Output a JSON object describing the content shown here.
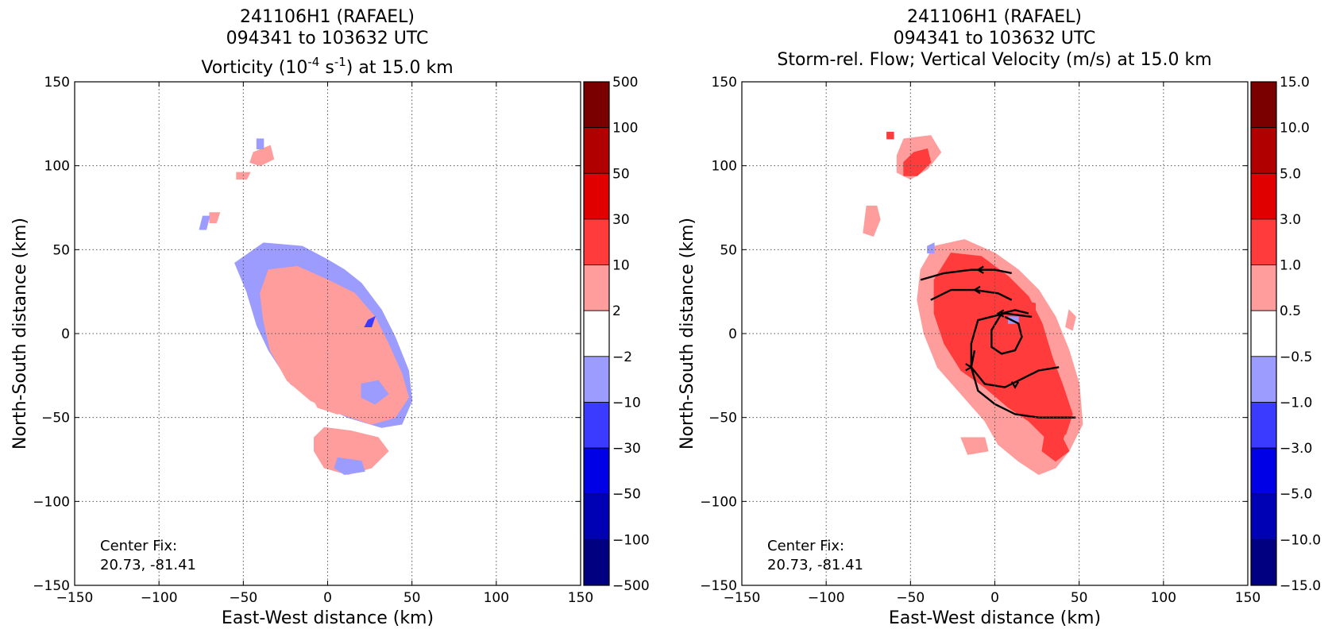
{
  "chart_data": [
    {
      "type": "heatmap",
      "title_lines": [
        "241106H1 (RAFAEL)",
        "094341 to 103632 UTC"
      ],
      "title_line3": {
        "prefix": "Vorticity (10",
        "sup1": "-4",
        "middle": " s",
        "sup2": "-1",
        "suffix": ") at 15.0 km"
      },
      "xlabel": "East-West distance (km)",
      "ylabel": "North-South distance (km)",
      "xlim": [
        -150,
        150
      ],
      "ylim": [
        -150,
        150
      ],
      "xticks": [
        "−150",
        "−100",
        "−50",
        "0",
        "50",
        "100",
        "150"
      ],
      "yticks": [
        "150",
        "100",
        "50",
        "0",
        "−50",
        "−100",
        "−150"
      ],
      "grid": true,
      "annotation": [
        "Center Fix:",
        "20.73, -81.41"
      ],
      "colorbar_labels": [
        "500",
        "100",
        "50",
        "30",
        "10",
        "2",
        "−2",
        "−10",
        "−30",
        "−50",
        "−100",
        "−500"
      ],
      "colorbar_colors": [
        "#7a0000",
        "#b00000",
        "#e00000",
        "#ff3b3b",
        "#ff9c9c",
        "#ffffff",
        "#9c9cff",
        "#3b3bff",
        "#0000e6",
        "#0000b4",
        "#000080"
      ],
      "regions": [
        {
          "level": "neg2",
          "points": [
            [
              -55,
              42
            ],
            [
              -38,
              54
            ],
            [
              -15,
              52
            ],
            [
              0,
              44
            ],
            [
              10,
              38
            ],
            [
              20,
              30
            ],
            [
              32,
              14
            ],
            [
              40,
              -2
            ],
            [
              48,
              -22
            ],
            [
              50,
              -40
            ],
            [
              44,
              -54
            ],
            [
              32,
              -56
            ],
            [
              12,
              -50
            ],
            [
              -5,
              -42
            ],
            [
              -22,
              -30
            ],
            [
              -35,
              -10
            ],
            [
              -42,
              5
            ],
            [
              -48,
              25
            ]
          ]
        },
        {
          "level": "pos2",
          "points": [
            [
              -35,
              38
            ],
            [
              -18,
              40
            ],
            [
              0,
              32
            ],
            [
              16,
              24
            ],
            [
              28,
              10
            ],
            [
              36,
              -6
            ],
            [
              44,
              -24
            ],
            [
              48,
              -38
            ],
            [
              40,
              -50
            ],
            [
              26,
              -54
            ],
            [
              8,
              -48
            ],
            [
              -10,
              -40
            ],
            [
              -24,
              -28
            ],
            [
              -34,
              -10
            ],
            [
              -38,
              8
            ],
            [
              -40,
              24
            ]
          ]
        },
        {
          "level": "pos10",
          "points": [
            [
              -18,
              20
            ],
            [
              -4,
              22
            ],
            [
              10,
              16
            ],
            [
              18,
              6
            ],
            [
              22,
              -8
            ],
            [
              18,
              -20
            ],
            [
              8,
              -24
            ],
            [
              -6,
              -22
            ],
            [
              -18,
              -12
            ],
            [
              -24,
              0
            ],
            [
              -22,
              12
            ]
          ]
        },
        {
          "level": "pos10",
          "points": [
            [
              -6,
              -30
            ],
            [
              6,
              -34
            ],
            [
              14,
              -42
            ],
            [
              6,
              -48
            ],
            [
              -6,
              -44
            ],
            [
              -10,
              -36
            ]
          ]
        },
        {
          "level": "neg2",
          "points": [
            [
              20,
              -30
            ],
            [
              30,
              -28
            ],
            [
              36,
              -36
            ],
            [
              28,
              -42
            ],
            [
              20,
              -38
            ]
          ]
        },
        {
          "level": "neg10",
          "points": [
            [
              24,
              8
            ],
            [
              28,
              10
            ],
            [
              26,
              4
            ],
            [
              22,
              4
            ]
          ]
        },
        {
          "level": "pos2",
          "points": [
            [
              -2,
              -56
            ],
            [
              14,
              -58
            ],
            [
              30,
              -62
            ],
            [
              36,
              -70
            ],
            [
              26,
              -80
            ],
            [
              12,
              -84
            ],
            [
              -2,
              -80
            ],
            [
              -8,
              -70
            ],
            [
              -8,
              -62
            ]
          ]
        },
        {
          "level": "neg2",
          "points": [
            [
              6,
              -74
            ],
            [
              20,
              -76
            ],
            [
              22,
              -82
            ],
            [
              10,
              -84
            ],
            [
              4,
              -80
            ]
          ]
        },
        {
          "level": "pos2",
          "points": [
            [
              -44,
              108
            ],
            [
              -34,
              112
            ],
            [
              -32,
              104
            ],
            [
              -40,
              100
            ],
            [
              -46,
              102
            ]
          ]
        },
        {
          "level": "neg2",
          "points": [
            [
              -42,
              116
            ],
            [
              -38,
              116
            ],
            [
              -38,
              110
            ],
            [
              -42,
              110
            ]
          ]
        },
        {
          "level": "pos2",
          "points": [
            [
              -54,
              96
            ],
            [
              -46,
              96
            ],
            [
              -48,
              92
            ],
            [
              -54,
              92
            ]
          ]
        },
        {
          "level": "pos10",
          "points": [
            [
              -70,
              72
            ],
            [
              -64,
              72
            ],
            [
              -66,
              66
            ],
            [
              -70,
              66
            ]
          ]
        },
        {
          "level": "neg2",
          "points": [
            [
              -74,
              70
            ],
            [
              -70,
              70
            ],
            [
              -72,
              62
            ],
            [
              -76,
              62
            ]
          ]
        }
      ],
      "arrows": []
    },
    {
      "type": "heatmap",
      "title_lines": [
        "241106H1 (RAFAEL)",
        "094341 to 103632 UTC",
        "Storm-rel. Flow; Vertical Velocity (m/s) at 15.0 km"
      ],
      "xlabel": "East-West distance (km)",
      "ylabel": "North-South distance (km)",
      "xlim": [
        -150,
        150
      ],
      "ylim": [
        -150,
        150
      ],
      "xticks": [
        "−150",
        "−100",
        "−50",
        "0",
        "50",
        "100",
        "150"
      ],
      "yticks": [
        "150",
        "100",
        "50",
        "0",
        "−50",
        "−100",
        "−150"
      ],
      "grid": true,
      "annotation": [
        "Center Fix:",
        "20.73, -81.41"
      ],
      "colorbar_labels": [
        "15.0",
        "10.0",
        "5.0",
        "3.0",
        "1.0",
        "0.5",
        "−0.5",
        "−1.0",
        "−3.0",
        "−5.0",
        "−10.0",
        "−15.0"
      ],
      "colorbar_colors": [
        "#7a0000",
        "#b00000",
        "#e00000",
        "#ff3b3b",
        "#ff9c9c",
        "#ffffff",
        "#9c9cff",
        "#3b3bff",
        "#0000e6",
        "#0000b4",
        "#000080"
      ],
      "regions": [
        {
          "level": "pos05",
          "points": [
            [
              -36,
              52
            ],
            [
              -18,
              56
            ],
            [
              0,
              48
            ],
            [
              14,
              38
            ],
            [
              26,
              26
            ],
            [
              36,
              10
            ],
            [
              44,
              -10
            ],
            [
              50,
              -30
            ],
            [
              52,
              -54
            ],
            [
              44,
              -70
            ],
            [
              36,
              -80
            ],
            [
              26,
              -84
            ],
            [
              14,
              -76
            ],
            [
              2,
              -66
            ],
            [
              -6,
              -52
            ],
            [
              -20,
              -36
            ],
            [
              -34,
              -20
            ],
            [
              -42,
              0
            ],
            [
              -46,
              20
            ],
            [
              -44,
              38
            ]
          ]
        },
        {
          "level": "pos1",
          "points": [
            [
              -26,
              48
            ],
            [
              -8,
              46
            ],
            [
              8,
              34
            ],
            [
              20,
              22
            ],
            [
              28,
              6
            ],
            [
              34,
              -14
            ],
            [
              40,
              -30
            ],
            [
              46,
              -48
            ],
            [
              42,
              -60
            ],
            [
              30,
              -62
            ],
            [
              20,
              -52
            ],
            [
              8,
              -44
            ],
            [
              -6,
              -32
            ],
            [
              -20,
              -22
            ],
            [
              -30,
              -6
            ],
            [
              -36,
              12
            ],
            [
              -36,
              32
            ]
          ]
        },
        {
          "level": "pos1",
          "points": [
            [
              30,
              -58
            ],
            [
              40,
              -62
            ],
            [
              44,
              -70
            ],
            [
              36,
              -76
            ],
            [
              28,
              -70
            ]
          ]
        },
        {
          "level": "pos3",
          "points": [
            [
              36,
              -56
            ],
            [
              42,
              -58
            ],
            [
              40,
              -64
            ],
            [
              34,
              -62
            ]
          ]
        },
        {
          "level": "pos3",
          "points": [
            [
              14,
              20
            ],
            [
              24,
              18
            ],
            [
              24,
              12
            ],
            [
              16,
              12
            ]
          ]
        },
        {
          "level": "neg1",
          "points": [
            [
              8,
              10
            ],
            [
              14,
              10
            ],
            [
              14,
              6
            ],
            [
              8,
              6
            ]
          ]
        },
        {
          "level": "pos05",
          "points": [
            [
              44,
              14
            ],
            [
              48,
              10
            ],
            [
              46,
              2
            ],
            [
              42,
              4
            ]
          ]
        },
        {
          "level": "pos05",
          "points": [
            [
              -54,
              116
            ],
            [
              -38,
              118
            ],
            [
              -32,
              108
            ],
            [
              -40,
              98
            ],
            [
              -50,
              92
            ],
            [
              -58,
              96
            ],
            [
              -58,
              106
            ]
          ]
        },
        {
          "level": "pos1",
          "points": [
            [
              -48,
              108
            ],
            [
              -40,
              110
            ],
            [
              -38,
              102
            ],
            [
              -46,
              94
            ],
            [
              -54,
              94
            ],
            [
              -54,
              102
            ]
          ]
        },
        {
          "level": "pos05",
          "points": [
            [
              -76,
              76
            ],
            [
              -70,
              76
            ],
            [
              -68,
              68
            ],
            [
              -72,
              58
            ],
            [
              -78,
              60
            ]
          ]
        },
        {
          "level": "pos1",
          "points": [
            [
              -64,
              120
            ],
            [
              -60,
              120
            ],
            [
              -60,
              116
            ],
            [
              -64,
              116
            ]
          ]
        },
        {
          "level": "pos05",
          "points": [
            [
              -20,
              -62
            ],
            [
              -6,
              -62
            ],
            [
              -4,
              -70
            ],
            [
              -16,
              -72
            ]
          ]
        },
        {
          "level": "neg1",
          "points": [
            [
              -40,
              52
            ],
            [
              -36,
              54
            ],
            [
              -36,
              48
            ],
            [
              -40,
              48
            ]
          ]
        }
      ],
      "arrows": [
        {
          "points": [
            [
              -44,
              32
            ],
            [
              -30,
              36
            ],
            [
              -14,
              38
            ],
            [
              0,
              38
            ],
            [
              10,
              36
            ]
          ],
          "arrow_at": [
            [
              -10,
              38
            ],
            -1
          ]
        },
        {
          "points": [
            [
              -38,
              20
            ],
            [
              -26,
              26
            ],
            [
              -12,
              26
            ],
            [
              2,
              24
            ],
            [
              10,
              20
            ]
          ],
          "arrow_at": [
            [
              -12,
              26
            ],
            -1
          ]
        },
        {
          "points": [
            [
              20,
              12
            ],
            [
              12,
              14
            ],
            [
              4,
              12
            ],
            [
              -2,
              2
            ],
            [
              -2,
              -8
            ],
            [
              4,
              -12
            ],
            [
              12,
              -10
            ],
            [
              16,
              -2
            ],
            [
              14,
              6
            ],
            [
              6,
              10
            ]
          ],
          "arrow_at": [
            [
              2,
              12
            ],
            -1
          ]
        },
        {
          "points": [
            [
              22,
              10
            ],
            [
              6,
              12
            ],
            [
              -10,
              8
            ],
            [
              -14,
              -6
            ],
            [
              -14,
              -20
            ],
            [
              -6,
              -30
            ],
            [
              6,
              -32
            ],
            [
              18,
              -26
            ],
            [
              26,
              -22
            ],
            [
              38,
              -20
            ]
          ],
          "arrow_at": [
            [
              -14,
              -20
            ],
            1
          ]
        },
        {
          "points": [
            [
              -12,
              -10
            ],
            [
              -14,
              -20
            ],
            [
              -10,
              -34
            ],
            [
              0,
              -42
            ],
            [
              12,
              -48
            ],
            [
              26,
              -50
            ],
            [
              40,
              -50
            ],
            [
              48,
              -50
            ]
          ],
          "arrow_at": [
            [
              12,
              -32
            ],
            0
          ]
        }
      ]
    }
  ]
}
